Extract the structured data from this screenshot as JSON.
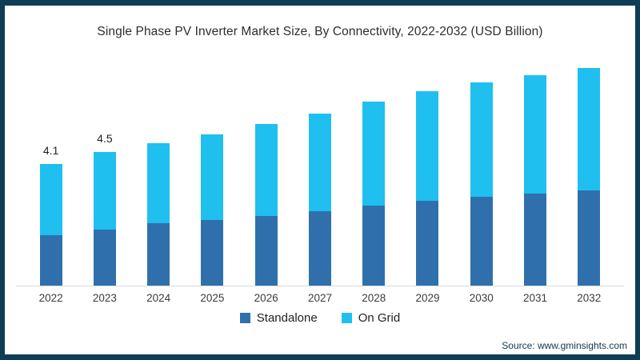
{
  "title": "Single Phase PV Inverter Market Size, By Connectivity, 2022-2032 (USD Billion)",
  "source": "Source: www.gminsights.com",
  "colors": {
    "frame_border": "#0E3E54",
    "axis_line": "#D8D8D8",
    "standalone": "#2F70AC",
    "on_grid": "#1FBFEF",
    "text": "#2D2D2D"
  },
  "chart_data": {
    "type": "bar",
    "stacked": true,
    "title": "Single Phase PV Inverter Market Size, By Connectivity, 2022-2032 (USD Billion)",
    "xlabel": "",
    "ylabel": "",
    "categories": [
      "2022",
      "2023",
      "2024",
      "2025",
      "2026",
      "2027",
      "2028",
      "2029",
      "2030",
      "2031",
      "2032"
    ],
    "series": [
      {
        "name": "Standalone",
        "color": "#2F70AC",
        "values": [
          1.7,
          1.9,
          2.1,
          2.2,
          2.35,
          2.5,
          2.7,
          2.85,
          3.0,
          3.1,
          3.2
        ]
      },
      {
        "name": "On Grid",
        "color": "#1FBFEF",
        "values": [
          2.4,
          2.6,
          2.7,
          2.9,
          3.1,
          3.3,
          3.5,
          3.7,
          3.85,
          4.0,
          4.15
        ]
      }
    ],
    "totals": [
      4.1,
      4.5,
      4.8,
      5.1,
      5.45,
      5.8,
      6.2,
      6.55,
      6.85,
      7.1,
      7.35
    ],
    "data_labels": {
      "2022": "4.1",
      "2023": "4.5"
    },
    "ylim": [
      0,
      7.5
    ],
    "grid": false,
    "legend_position": "bottom"
  }
}
